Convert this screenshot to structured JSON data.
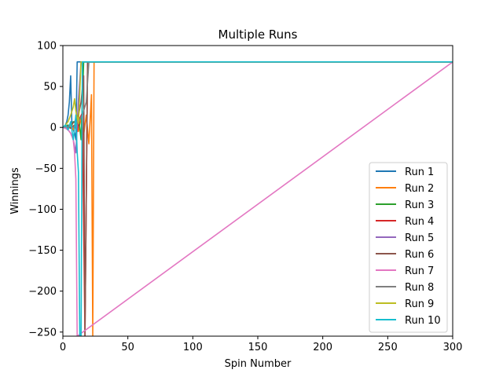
{
  "chart_data": {
    "type": "line",
    "title": "Multiple Runs",
    "xlabel": "Spin Number",
    "ylabel": "Winnings",
    "xlim": [
      0,
      300
    ],
    "ylim": [
      -255,
      100
    ],
    "xticks": [
      0,
      50,
      100,
      150,
      200,
      250,
      300
    ],
    "yticks": [
      -250,
      -200,
      -150,
      -100,
      -50,
      0,
      50,
      100
    ],
    "ytick_labels": [
      "−250",
      "−200",
      "−150",
      "−100",
      "−50",
      "0",
      "50",
      "100"
    ],
    "grid": false,
    "legend_position": "lower right",
    "series": [
      {
        "name": "Run 1",
        "color": "#1f77b4",
        "x": [
          0,
          1,
          2,
          3,
          4,
          5,
          6,
          7,
          8,
          9,
          10,
          11,
          300
        ],
        "y": [
          0,
          1,
          3,
          7,
          15,
          31,
          63,
          -1,
          -3,
          -7,
          -15,
          80,
          80
        ]
      },
      {
        "name": "Run 2",
        "color": "#ff7f0e",
        "x": [
          0,
          2,
          4,
          6,
          8,
          10,
          12,
          14,
          16,
          18,
          20,
          22,
          23,
          24,
          300
        ],
        "y": [
          0,
          1,
          -1,
          3,
          -3,
          7,
          -5,
          11,
          -9,
          15,
          -20,
          40,
          -255,
          80,
          80
        ]
      },
      {
        "name": "Run 3",
        "color": "#2ca02c",
        "x": [
          0,
          2,
          4,
          6,
          8,
          10,
          12,
          14,
          16,
          300
        ],
        "y": [
          0,
          1,
          3,
          -1,
          7,
          5,
          15,
          -15,
          80,
          80
        ]
      },
      {
        "name": "Run 4",
        "color": "#d62728",
        "x": [
          0,
          3,
          6,
          9,
          11,
          13,
          15,
          17,
          19,
          300
        ],
        "y": [
          0,
          1,
          -1,
          3,
          -5,
          11,
          18,
          -255,
          80,
          80
        ]
      },
      {
        "name": "Run 5",
        "color": "#9467bd",
        "x": [
          0,
          2,
          4,
          6,
          8,
          10,
          12,
          14,
          300
        ],
        "y": [
          0,
          -1,
          -3,
          -7,
          -15,
          -31,
          35,
          80,
          80
        ]
      },
      {
        "name": "Run 6",
        "color": "#8c564b",
        "x": [
          0,
          3,
          6,
          9,
          12,
          14,
          16,
          17,
          19,
          300
        ],
        "y": [
          0,
          1,
          3,
          7,
          15,
          31,
          63,
          -255,
          80,
          80
        ]
      },
      {
        "name": "Run 7",
        "color": "#e377c2",
        "x": [
          0,
          2,
          4,
          6,
          8,
          9,
          10,
          11,
          300
        ],
        "y": [
          0,
          -1,
          -3,
          -7,
          -15,
          -31,
          -63,
          -255,
          80
        ]
      },
      {
        "name": "Run 8",
        "color": "#7f7f7f",
        "x": [
          0,
          3,
          6,
          9,
          12,
          15,
          18,
          20,
          300
        ],
        "y": [
          0,
          1,
          3,
          -1,
          7,
          15,
          31,
          80,
          80
        ]
      },
      {
        "name": "Run 9",
        "color": "#bcbd22",
        "x": [
          0,
          2,
          4,
          6,
          8,
          9,
          10,
          12,
          14,
          300
        ],
        "y": [
          0,
          3,
          7,
          15,
          25,
          35,
          20,
          5,
          80,
          80
        ]
      },
      {
        "name": "Run 10",
        "color": "#17becf",
        "x": [
          0,
          2,
          4,
          6,
          8,
          10,
          11,
          12,
          13,
          14,
          15,
          300
        ],
        "y": [
          0,
          3,
          -3,
          7,
          -15,
          15,
          -30,
          -55,
          -255,
          -255,
          80,
          80
        ]
      }
    ]
  }
}
